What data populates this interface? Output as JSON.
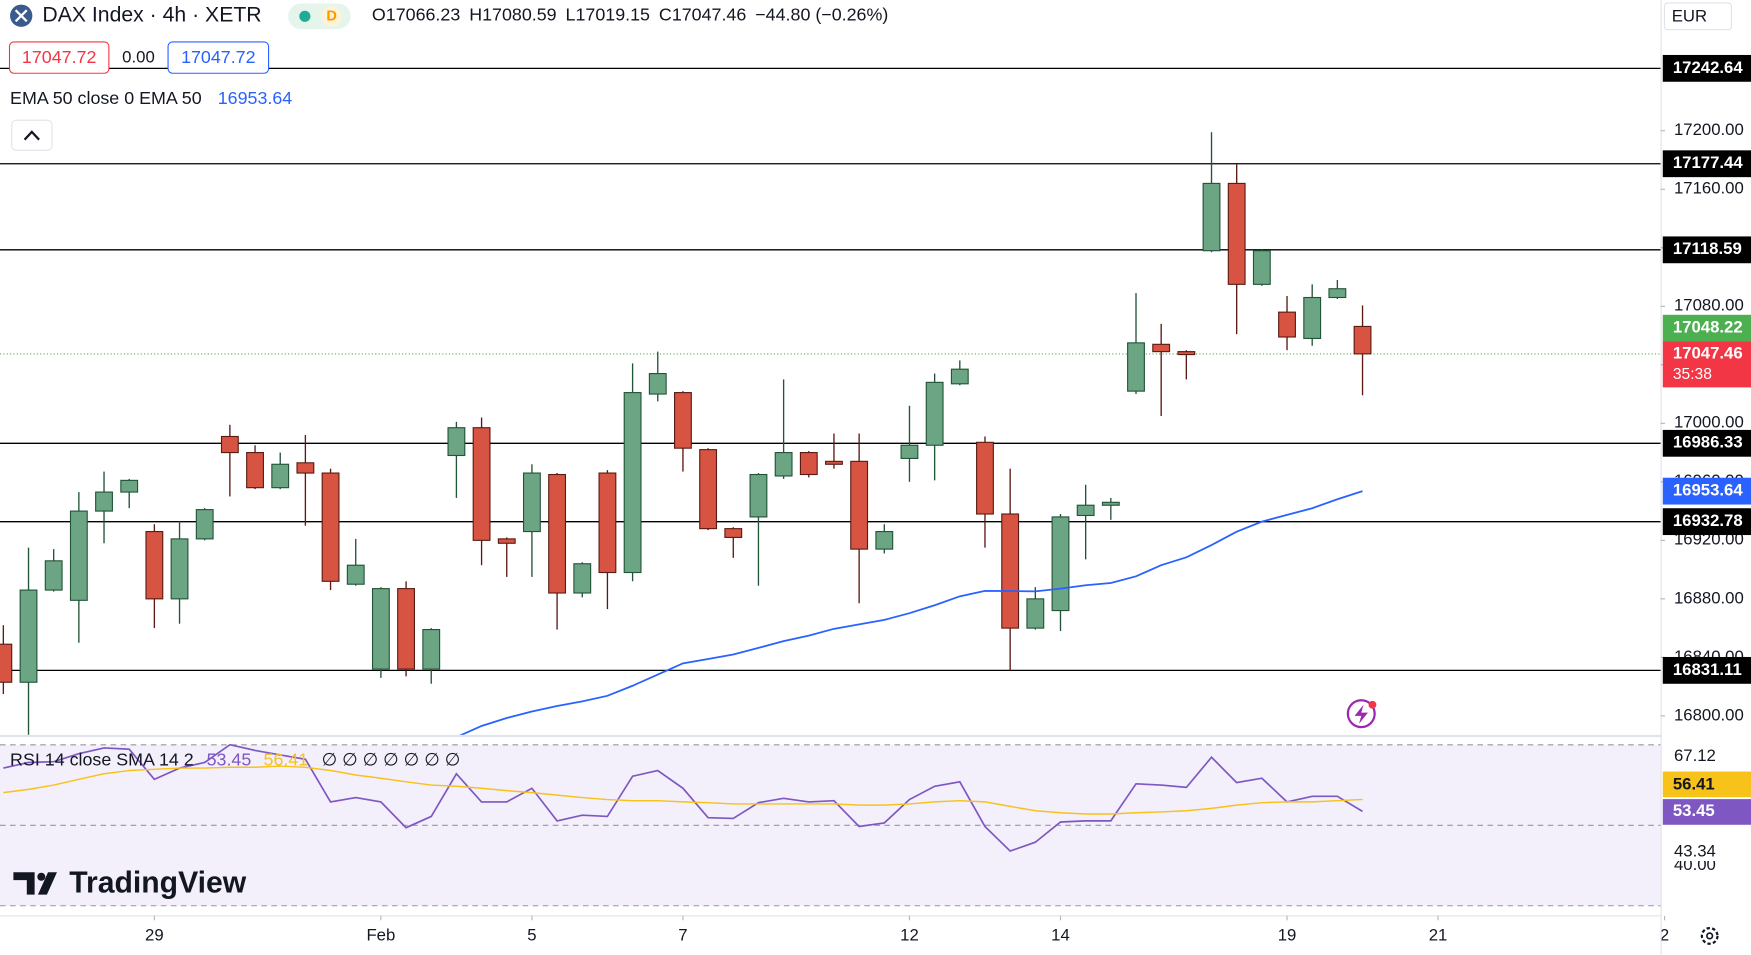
{
  "header": {
    "symbol": "DAX Index · 4h · XETR",
    "interval_badge": "D",
    "ohlc_letters": [
      "O",
      "H",
      "L",
      "C"
    ],
    "change": "−44.80 (−0.26%)",
    "sell": "17047.72",
    "spread": "0.00",
    "buy": "17047.72",
    "currency": "EUR",
    "countdown": "35:38",
    "logo": "TradingView"
  },
  "chart_data": [
    {
      "type": "candlestick",
      "categories": [
        null,
        null,
        null,
        null,
        null,
        null,
        null,
        null,
        null,
        null,
        null,
        null,
        null,
        null,
        null,
        null,
        null,
        null,
        null,
        null,
        null,
        null,
        null,
        null,
        null,
        null,
        null,
        null,
        null,
        null,
        null,
        null,
        null,
        null,
        null,
        null,
        null,
        null,
        null,
        null,
        null,
        null,
        null,
        null,
        null,
        null,
        null,
        null,
        null,
        null,
        null,
        null,
        null,
        null,
        null
      ],
      "ohlc": [
        [
          16849,
          16862,
          16815,
          16823
        ],
        [
          16823,
          16915,
          16787,
          16886
        ],
        [
          16886,
          16914,
          16885,
          16906
        ],
        [
          16879,
          16953,
          16850,
          16940
        ],
        [
          16940,
          16967,
          16918,
          16953
        ],
        [
          16953,
          16962,
          16942,
          16961
        ],
        [
          16926,
          16931,
          16860,
          16880
        ],
        [
          16880,
          16933,
          16863,
          16921
        ],
        [
          16921,
          16942,
          16920,
          16941
        ],
        [
          16991,
          16999,
          16950,
          16980
        ],
        [
          16980,
          16985,
          16955,
          16956
        ],
        [
          16956,
          16980,
          16955,
          16972
        ],
        [
          16973,
          16992,
          16930,
          16966
        ],
        [
          16966,
          16969,
          16886,
          16892
        ],
        [
          16890,
          16921,
          16889,
          16903
        ],
        [
          16832,
          16888,
          16826,
          16887
        ],
        [
          16887,
          16892,
          16827,
          16832
        ],
        [
          16832,
          16860,
          16822,
          16859
        ],
        [
          16978,
          17001,
          16949,
          16997
        ],
        [
          16997,
          17004,
          16903,
          16920
        ],
        [
          16921,
          16922,
          16895,
          16918
        ],
        [
          16926,
          16972,
          16895,
          16966
        ],
        [
          16965,
          16966,
          16859,
          16884
        ],
        [
          16884,
          16905,
          16881,
          16904
        ],
        [
          16966,
          16968,
          16873,
          16898
        ],
        [
          16898,
          17041,
          16892,
          17021
        ],
        [
          17020,
          17049,
          17015,
          17034
        ],
        [
          17021,
          17022,
          16967,
          16983
        ],
        [
          16982,
          16983,
          16927,
          16928
        ],
        [
          16928,
          16929,
          16908,
          16922
        ],
        [
          16936,
          16966,
          16889,
          16965
        ],
        [
          16964,
          17030,
          16962,
          16980
        ],
        [
          16980,
          16981,
          16963,
          16965
        ],
        [
          16974,
          16993,
          16969,
          16972
        ],
        [
          16974,
          16993,
          16877,
          16914
        ],
        [
          16914,
          16931,
          16911,
          16926
        ],
        [
          16976,
          17012,
          16960,
          16985
        ],
        [
          16985,
          17034,
          16961,
          17028
        ],
        [
          17027,
          17043,
          17026,
          17037
        ],
        [
          16987,
          16991,
          16915,
          16938
        ],
        [
          16938,
          16969,
          16831,
          16860
        ],
        [
          16860,
          16888,
          16859,
          16880
        ],
        [
          16872,
          16938,
          16858,
          16936
        ],
        [
          16937,
          16958,
          16907,
          16944
        ],
        [
          16944,
          16949,
          16934,
          16946
        ],
        [
          17022,
          17089,
          17020,
          17055
        ],
        [
          17054,
          17068,
          17005,
          17049
        ],
        [
          17049,
          17050,
          17030,
          17047
        ],
        [
          17118,
          17199,
          17117,
          17164
        ],
        [
          17164,
          17177,
          17061,
          17095
        ],
        [
          17095,
          17119,
          17094,
          17118
        ],
        [
          17076,
          17087,
          17050,
          17059
        ],
        [
          17058,
          17095,
          17053,
          17086
        ],
        [
          17086,
          17098,
          17085,
          17092
        ],
        [
          17066.23,
          17080.59,
          17019.15,
          17047.46
        ]
      ],
      "up_color": "#6ba583",
      "up_border": "#225437",
      "down_color": "#d75442",
      "down_border": "#5b1a13",
      "ema": {
        "name": "EMA 50 close 0 EMA 50",
        "color": "#2962ff",
        "values": [
          null,
          null,
          null,
          null,
          null,
          null,
          null,
          null,
          null,
          null,
          null,
          null,
          null,
          null,
          null,
          null,
          null,
          null,
          16785.5,
          16793.1,
          16798.5,
          16803,
          16806.8,
          16809.9,
          16813.7,
          16820.6,
          16828.2,
          16835.9,
          16838.9,
          16842,
          16846.5,
          16851.1,
          16854.9,
          16859.5,
          16862.6,
          16865.6,
          16870.2,
          16875.6,
          16881.7,
          16885.5,
          16885.3,
          16885.1,
          16887,
          16889.3,
          16890.8,
          16895.4,
          16903,
          16908.4,
          16916.8,
          16925.9,
          16932.8,
          16937.4,
          16942,
          16948.1,
          16953.64
        ]
      },
      "levels": [
        17242.64,
        17177.44,
        17118.59,
        16986.33,
        16932.78,
        16831.11
      ],
      "level_color": "#000000",
      "alt_price": 17048.22,
      "alt_color": "#4caf50",
      "close_color": "#f23645",
      "xlim": [
        -0.133,
        65.84
      ],
      "ylim": [
        16787,
        17289.3
      ],
      "yticks": [
        {
          "value": 16800,
          "label": "16800.00"
        },
        {
          "value": 16840,
          "label": "16840.00"
        },
        {
          "value": 16880,
          "label": "16880.00"
        },
        {
          "value": 16920,
          "label": "16920.00"
        },
        {
          "value": 16960,
          "label": "16960.00"
        },
        {
          "value": 17000,
          "label": "17000.00"
        },
        {
          "value": 17040,
          "label": "17040.00"
        },
        {
          "value": 17080,
          "label": "17080.00"
        },
        {
          "value": 17120,
          "label": "17120.00"
        },
        {
          "value": 17160,
          "label": "17160.00"
        },
        {
          "value": 17200,
          "label": "17200.00"
        }
      ],
      "xticks": [
        {
          "value": 6,
          "label": "29"
        },
        {
          "value": 15,
          "label": "Feb"
        },
        {
          "value": 21,
          "label": "5"
        },
        {
          "value": 27,
          "label": "7"
        },
        {
          "value": 36,
          "label": "12"
        },
        {
          "value": 42,
          "label": "14"
        },
        {
          "value": 51,
          "label": "19"
        },
        {
          "value": 57,
          "label": "21"
        },
        {
          "value": 66,
          "label": "2"
        }
      ]
    },
    {
      "type": "line",
      "title": "RSI 14 close SMA 14 2",
      "placeholders": "∅ ∅ ∅ ∅ ∅ ∅ ∅",
      "series": [
        {
          "color": "#7e57c2",
          "values": [
            64.2,
            65.6,
            65.8,
            67.8,
            69.2,
            68.9,
            61.4,
            64.2,
            65.6,
            70,
            68.6,
            67.5,
            66.4,
            55.8,
            56.9,
            55.8,
            49.4,
            52.2,
            62.8,
            55.8,
            55.8,
            59.2,
            51.1,
            52.5,
            52.2,
            62.2,
            63.6,
            59.2,
            51.9,
            51.7,
            55.6,
            56.7,
            55.8,
            56.1,
            49.7,
            50.6,
            56.4,
            59.7,
            60.8,
            49.7,
            43.6,
            45.8,
            50.8,
            51.1,
            51.1,
            60.3,
            60,
            59.4,
            66.9,
            60.6,
            61.7,
            55.8,
            57.2,
            57.2,
            53.45
          ]
        },
        {
          "color": "#f7c21a",
          "values": [
            58.1,
            58.9,
            60,
            61.4,
            62.8,
            63.6,
            63.9,
            64.2,
            64.2,
            64.4,
            64.4,
            64.7,
            64.4,
            63.6,
            62.5,
            61.7,
            60.8,
            60,
            59.7,
            59.2,
            58.6,
            58.1,
            57.5,
            56.9,
            56.4,
            56.1,
            56.1,
            55.8,
            55.6,
            55.3,
            55.3,
            55.3,
            55.3,
            55.3,
            55,
            55,
            55.3,
            55.8,
            56.1,
            55.8,
            54.7,
            53.6,
            53.1,
            52.8,
            52.8,
            53.1,
            53.3,
            53.6,
            54.2,
            55,
            55.6,
            55.8,
            55.8,
            56.1,
            56.41
          ]
        }
      ],
      "bands": [
        30,
        50,
        70
      ],
      "band_fill": "#f3effb",
      "ylim": [
        27.5,
        71.9
      ],
      "yticks": [
        {
          "value": 40,
          "label": "40.00"
        },
        {
          "value": 43.34,
          "label": "43.34"
        },
        {
          "value": 67.12,
          "label": "67.12"
        }
      ]
    }
  ]
}
